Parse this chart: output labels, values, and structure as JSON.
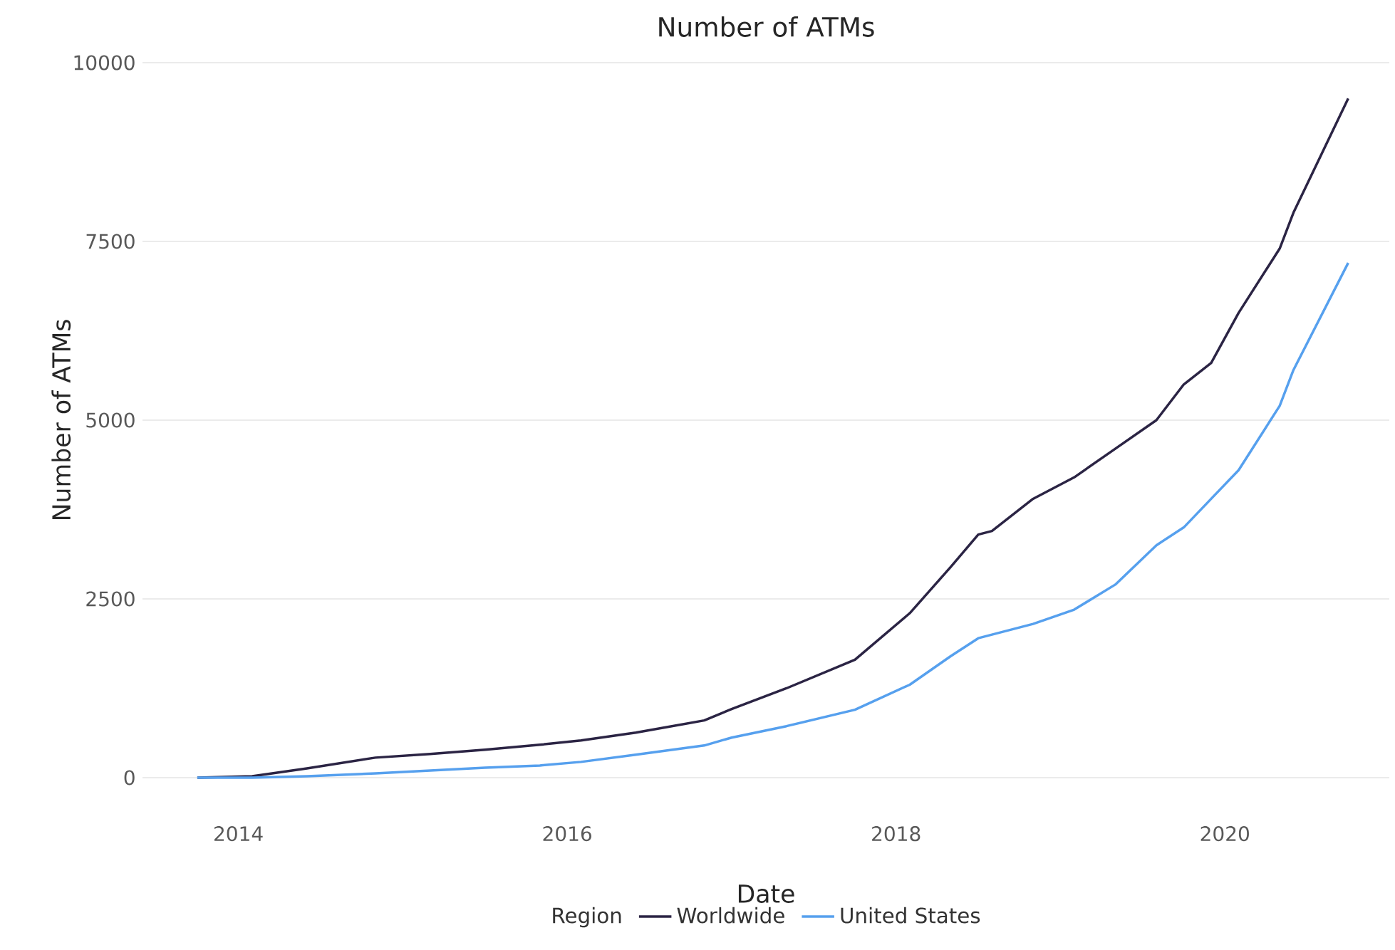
{
  "chart_data": {
    "type": "line",
    "title": "Number of ATMs",
    "xlabel": "Date",
    "ylabel": "Number of ATMs",
    "legend_title": "Region",
    "x": [
      "2013-10",
      "2014-02",
      "2014-06",
      "2014-11",
      "2015-03",
      "2015-07",
      "2015-11",
      "2016-02",
      "2016-06",
      "2016-11",
      "2017-01",
      "2017-05",
      "2017-10",
      "2018-02",
      "2018-05",
      "2018-07",
      "2018-08",
      "2018-11",
      "2019-02",
      "2019-05",
      "2019-08",
      "2019-10",
      "2019-12",
      "2020-02",
      "2020-05",
      "2020-06",
      "2020-10"
    ],
    "series": [
      {
        "name": "Worldwide",
        "color": "#2b2444",
        "values": [
          0,
          20,
          130,
          280,
          330,
          390,
          460,
          520,
          630,
          800,
          960,
          1250,
          1650,
          2300,
          2950,
          3400,
          3450,
          3900,
          4200,
          4600,
          5000,
          5500,
          5800,
          6500,
          7400,
          7900,
          9500
        ]
      },
      {
        "name": "United States",
        "color": "#56a0ee",
        "values": [
          0,
          0,
          20,
          60,
          100,
          140,
          170,
          220,
          320,
          450,
          560,
          720,
          950,
          1300,
          1700,
          1950,
          2000,
          2150,
          2350,
          2700,
          3250,
          3500,
          3900,
          4300,
          5200,
          5700,
          7200
        ]
      }
    ],
    "xlim": [
      "2013-06",
      "2021-01"
    ],
    "xticks": [
      "2014",
      "2016",
      "2018",
      "2020"
    ],
    "ylim": [
      0,
      10000
    ],
    "yticks": [
      0,
      2500,
      5000,
      7500,
      10000
    ],
    "grid": "y",
    "legend": "bottom",
    "marker": "none",
    "line_style": "solid"
  }
}
